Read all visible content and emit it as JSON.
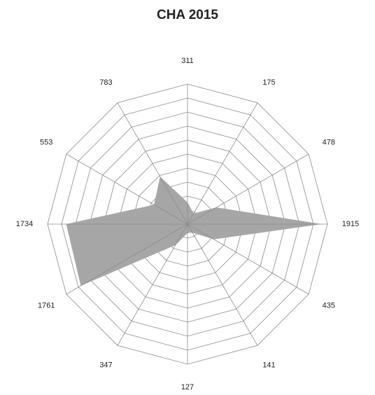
{
  "chart_data": {
    "type": "radar",
    "title": "CHA 2015",
    "categories": [
      "311",
      "175",
      "478",
      "1915",
      "435",
      "141",
      "127",
      "347",
      "1761",
      "1734",
      "553",
      "783"
    ],
    "values": [
      311,
      175,
      478,
      1915,
      435,
      141,
      127,
      347,
      1761,
      1734,
      553,
      783
    ],
    "color": "#a6a6a6",
    "ylim": [
      0,
      2000
    ],
    "yticks": [
      0,
      200,
      400,
      600,
      800,
      1000,
      1200,
      1400,
      1600,
      1800,
      2000
    ],
    "grid": true
  }
}
